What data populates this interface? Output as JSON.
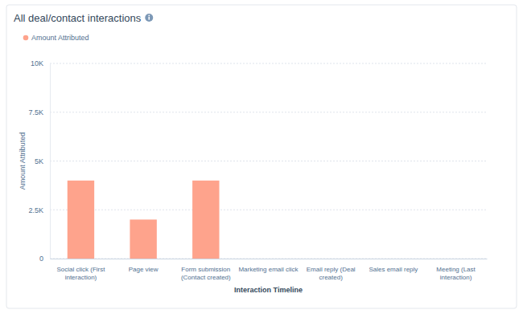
{
  "chart_data": {
    "type": "bar",
    "title": "All deal/contact interactions",
    "legend": "top-left",
    "categories": [
      "Social click (First interaction)",
      "Page view",
      "Form submission (Contact created)",
      "Marketing email click",
      "Email reply (Deal created)",
      "Sales email reply",
      "Meeting (Last interaction)"
    ],
    "series": [
      {
        "name": "Amount Attributed",
        "color": "#fea38c",
        "values": [
          4000,
          2000,
          4000,
          0,
          0,
          0,
          0
        ]
      }
    ],
    "x_label": "Interaction Timeline",
    "y_label": "Amount Attributed",
    "ylim": [
      0,
      10000
    ],
    "yticks": [
      0,
      {
        "value": 2500,
        "label": "2.5K"
      },
      {
        "value": 5000,
        "label": "5K"
      },
      {
        "value": 7500,
        "label": "7.5K"
      },
      {
        "value": 10000,
        "label": "10K"
      }
    ],
    "grid": true
  }
}
